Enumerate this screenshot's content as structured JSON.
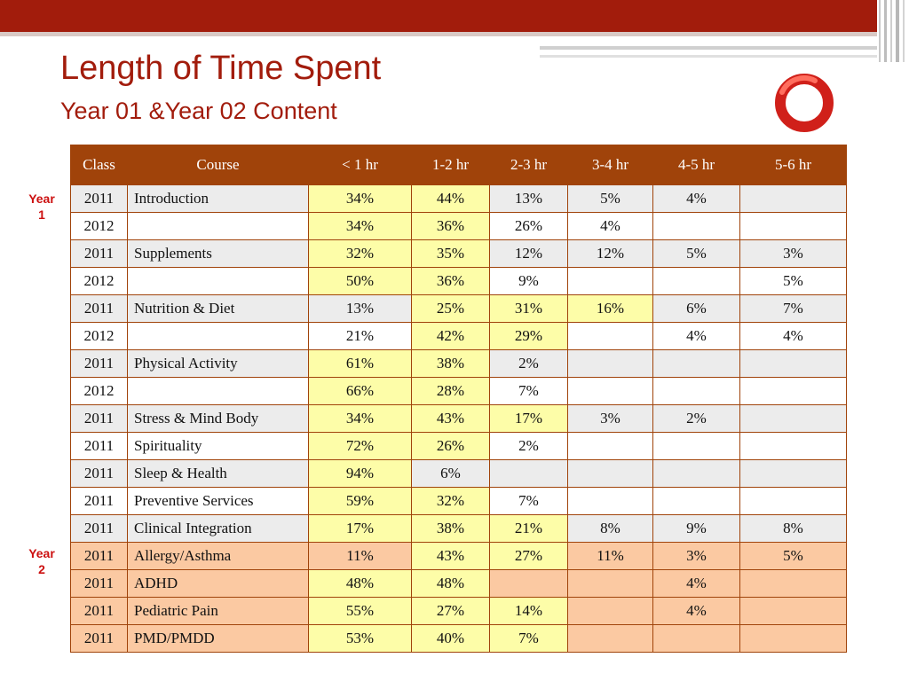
{
  "title": "Length of Time Spent",
  "subtitle": "Year 01 &Year 02 Content",
  "year_labels": {
    "year1_line1": "Year",
    "year1_line2": "1",
    "year2_line1": "Year",
    "year2_line2": "2"
  },
  "colors": {
    "accent": "#a21c0c",
    "header_bg": "#a0430a",
    "highlight": "#fdfda8",
    "year2_row": "#fbc9a2",
    "row_alt": "#ececec"
  },
  "table": {
    "headers": [
      "Class",
      "Course",
      "< 1 hr",
      "1-2 hr",
      "2-3 hr",
      "3-4 hr",
      "4-5 hr",
      "5-6 hr"
    ],
    "rows": [
      {
        "class": "2011",
        "course": "Introduction",
        "v": [
          "34%",
          "44%",
          "13%",
          "5%",
          "4%",
          ""
        ]
      },
      {
        "class": "2012",
        "course": "",
        "v": [
          "34%",
          "36%",
          "26%",
          "4%",
          "",
          ""
        ]
      },
      {
        "class": "2011",
        "course": "Supplements",
        "v": [
          "32%",
          "35%",
          "12%",
          "12%",
          "5%",
          "3%"
        ]
      },
      {
        "class": "2012",
        "course": "",
        "v": [
          "50%",
          "36%",
          "9%",
          "",
          "",
          "5%"
        ]
      },
      {
        "class": "2011",
        "course": "Nutrition & Diet",
        "v": [
          "13%",
          "25%",
          "31%",
          "16%",
          "6%",
          "7%"
        ]
      },
      {
        "class": "2012",
        "course": "",
        "v": [
          "21%",
          "42%",
          "29%",
          "",
          "4%",
          "4%"
        ]
      },
      {
        "class": "2011",
        "course": "Physical Activity",
        "v": [
          "61%",
          "38%",
          "2%",
          "",
          "",
          ""
        ]
      },
      {
        "class": "2012",
        "course": "",
        "v": [
          "66%",
          "28%",
          "7%",
          "",
          "",
          ""
        ]
      },
      {
        "class": "2011",
        "course": "Stress & Mind Body",
        "v": [
          "34%",
          "43%",
          "17%",
          "3%",
          "2%",
          ""
        ]
      },
      {
        "class": "2011",
        "course": "Spirituality",
        "v": [
          "72%",
          "26%",
          "2%",
          "",
          "",
          ""
        ]
      },
      {
        "class": "2011",
        "course": "Sleep & Health",
        "v": [
          "94%",
          "6%",
          "",
          "",
          "",
          ""
        ]
      },
      {
        "class": "2011",
        "course": "Preventive Services",
        "v": [
          "59%",
          "32%",
          "7%",
          "",
          "",
          ""
        ]
      },
      {
        "class": "2011",
        "course": "Clinical Integration",
        "v": [
          "17%",
          "38%",
          "21%",
          "8%",
          "9%",
          "8%"
        ]
      },
      {
        "class": "2011",
        "course": "Allergy/Asthma",
        "v": [
          "11%",
          "43%",
          "27%",
          "11%",
          "3%",
          "5%"
        ]
      },
      {
        "class": "2011",
        "course": "ADHD",
        "v": [
          "48%",
          "48%",
          "",
          "",
          "4%",
          ""
        ]
      },
      {
        "class": "2011",
        "course": "Pediatric Pain",
        "v": [
          "55%",
          "27%",
          "14%",
          "",
          "4%",
          ""
        ]
      },
      {
        "class": "2011",
        "course": "PMD/PMDD",
        "v": [
          "53%",
          "40%",
          "7%",
          "",
          "",
          ""
        ]
      }
    ]
  }
}
